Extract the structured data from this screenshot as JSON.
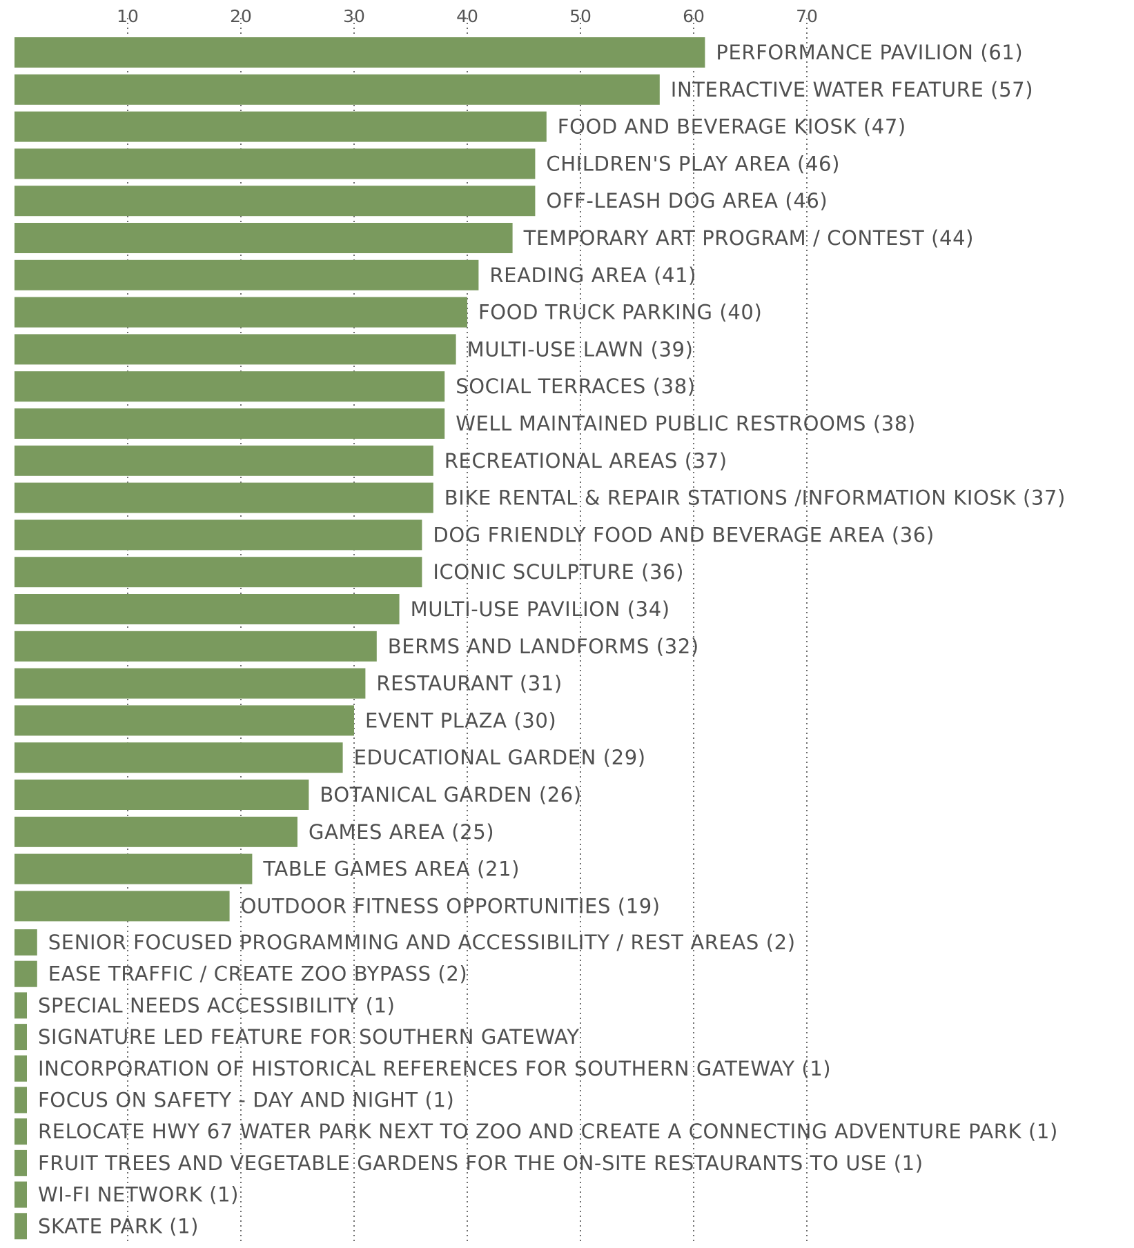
{
  "chart_data": {
    "type": "bar",
    "orientation": "horizontal",
    "title": "",
    "xlabel": "",
    "ylabel": "",
    "xlim": [
      0,
      70
    ],
    "x_ticks": [
      10,
      20,
      30,
      40,
      50,
      60,
      70
    ],
    "x_tick_labels": [
      "10",
      "20",
      "30",
      "40",
      "50",
      "60",
      "70"
    ],
    "x_axis_position": "top",
    "grid": "vertical dotted",
    "bar_color": "#7a9a5e",
    "gridline_color": "#6e6e6e",
    "bars": [
      {
        "label": "PERFORMANCE PAVILION (61)",
        "value": 61
      },
      {
        "label": "INTERACTIVE WATER FEATURE (57)",
        "value": 57
      },
      {
        "label": "FOOD AND BEVERAGE KIOSK (47)",
        "value": 47
      },
      {
        "label": "CHILDREN'S PLAY AREA (46)",
        "value": 46
      },
      {
        "label": "OFF-LEASH DOG AREA (46)",
        "value": 46
      },
      {
        "label": "TEMPORARY ART PROGRAM / CONTEST (44)",
        "value": 44
      },
      {
        "label": "READING AREA (41)",
        "value": 41
      },
      {
        "label": "FOOD TRUCK PARKING (40)",
        "value": 40
      },
      {
        "label": "MULTI-USE LAWN (39)",
        "value": 39
      },
      {
        "label": "SOCIAL TERRACES (38)",
        "value": 38
      },
      {
        "label": "WELL MAINTAINED PUBLIC RESTROOMS (38)",
        "value": 38
      },
      {
        "label": "RECREATIONAL AREAS (37)",
        "value": 37
      },
      {
        "label": "BIKE RENTAL & REPAIR STATIONS /INFORMATION KIOSK (37)",
        "value": 37
      },
      {
        "label": "DOG FRIENDLY FOOD AND BEVERAGE AREA (36)",
        "value": 36
      },
      {
        "label": "ICONIC SCULPTURE (36)",
        "value": 36
      },
      {
        "label": "MULTI-USE PAVILION (34)",
        "value": 34
      },
      {
        "label": "BERMS AND LANDFORMS (32)",
        "value": 32
      },
      {
        "label": "RESTAURANT (31)",
        "value": 31
      },
      {
        "label": "EVENT PLAZA (30)",
        "value": 30
      },
      {
        "label": "EDUCATIONAL GARDEN (29)",
        "value": 29
      },
      {
        "label": "BOTANICAL GARDEN (26)",
        "value": 26
      },
      {
        "label": "GAMES AREA (25)",
        "value": 25
      },
      {
        "label": "TABLE GAMES AREA (21)",
        "value": 21
      },
      {
        "label": "OUTDOOR FITNESS OPPORTUNITIES (19)",
        "value": 19
      },
      {
        "label": "SENIOR FOCUSED PROGRAMMING AND ACCESSIBILITY / REST AREAS (2)",
        "value": 2
      },
      {
        "label": "EASE TRAFFIC / CREATE ZOO BYPASS (2)",
        "value": 2
      },
      {
        "label": "SPECIAL NEEDS ACCESSIBILITY (1)",
        "value": 1
      },
      {
        "label": "SIGNATURE LED FEATURE FOR SOUTHERN GATEWAY",
        "value": 1
      },
      {
        "label": "INCORPORATION OF HISTORICAL REFERENCES FOR SOUTHERN GATEWAY (1)",
        "value": 1
      },
      {
        "label": "FOCUS ON SAFETY - DAY AND NIGHT (1)",
        "value": 1
      },
      {
        "label": "RELOCATE HWY 67 WATER PARK NEXT TO ZOO AND CREATE A CONNECTING ADVENTURE PARK (1)",
        "value": 1
      },
      {
        "label": "FRUIT TREES AND VEGETABLE GARDENS FOR THE ON-SITE RESTAURANTS TO USE (1)",
        "value": 1
      },
      {
        "label": "WI-FI NETWORK (1)",
        "value": 1
      },
      {
        "label": "SKATE PARK (1)",
        "value": 1
      }
    ]
  }
}
